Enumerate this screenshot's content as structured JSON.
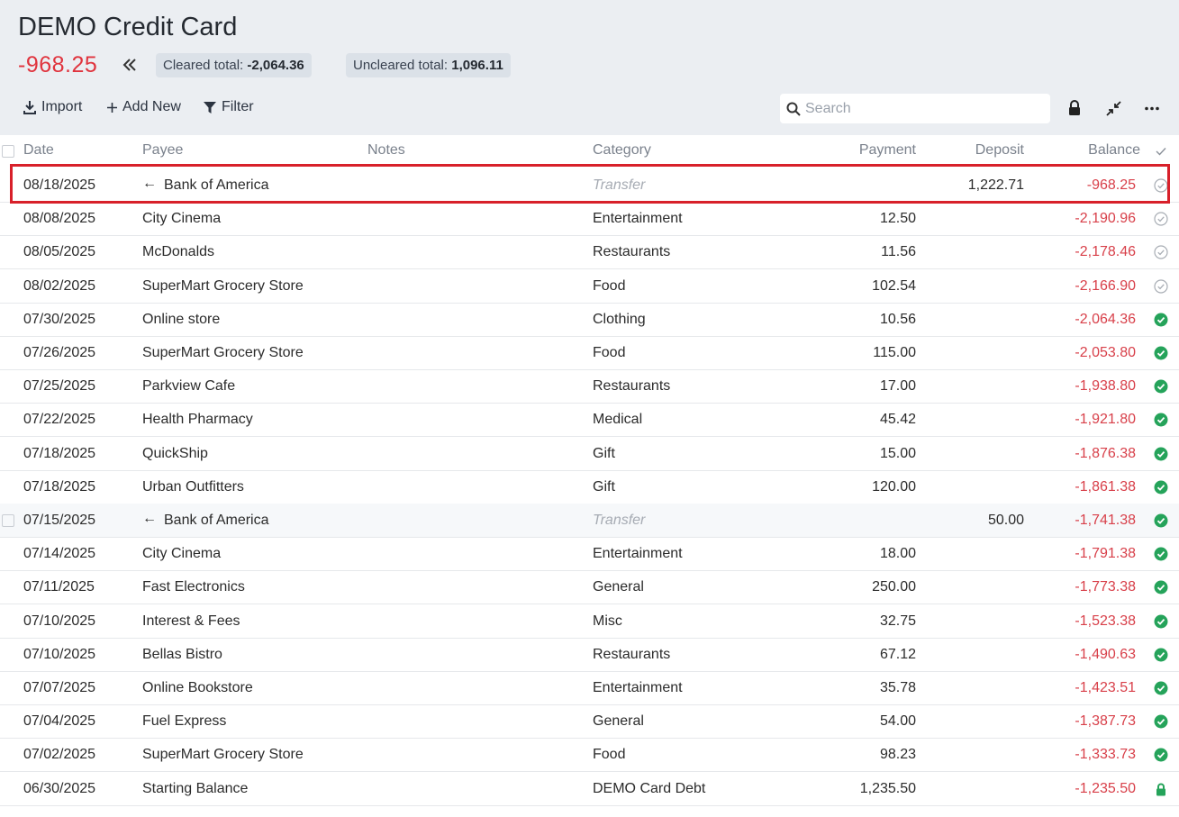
{
  "header": {
    "title": "DEMO Credit Card",
    "balance": "-968.25",
    "cleared_label": "Cleared total:",
    "cleared_value": "-2,064.36",
    "uncleared_label": "Uncleared total:",
    "uncleared_value": "1,096.11"
  },
  "toolbar": {
    "import": "Import",
    "add_new": "Add New",
    "filter": "Filter",
    "search_placeholder": "Search"
  },
  "table": {
    "columns": {
      "date": "Date",
      "payee": "Payee",
      "notes": "Notes",
      "category": "Category",
      "payment": "Payment",
      "deposit": "Deposit",
      "balance": "Balance"
    },
    "rows": [
      {
        "date": "08/18/2025",
        "payee": "Bank of America",
        "transfer": true,
        "category": "Transfer",
        "payment": null,
        "deposit": "1,222.71",
        "balance": "-968.25",
        "status": "uncleared"
      },
      {
        "date": "08/08/2025",
        "payee": "City Cinema",
        "category": "Entertainment",
        "payment": "12.50",
        "deposit": null,
        "balance": "-2,190.96",
        "status": "uncleared"
      },
      {
        "date": "08/05/2025",
        "payee": "McDonalds",
        "category": "Restaurants",
        "payment": "11.56",
        "deposit": null,
        "balance": "-2,178.46",
        "status": "uncleared"
      },
      {
        "date": "08/02/2025",
        "payee": "SuperMart Grocery Store",
        "category": "Food",
        "payment": "102.54",
        "deposit": null,
        "balance": "-2,166.90",
        "status": "uncleared"
      },
      {
        "date": "07/30/2025",
        "payee": "Online store",
        "category": "Clothing",
        "payment": "10.56",
        "deposit": null,
        "balance": "-2,064.36",
        "status": "cleared"
      },
      {
        "date": "07/26/2025",
        "payee": "SuperMart Grocery Store",
        "category": "Food",
        "payment": "115.00",
        "deposit": null,
        "balance": "-2,053.80",
        "status": "cleared"
      },
      {
        "date": "07/25/2025",
        "payee": "Parkview Cafe",
        "category": "Restaurants",
        "payment": "17.00",
        "deposit": null,
        "balance": "-1,938.80",
        "status": "cleared"
      },
      {
        "date": "07/22/2025",
        "payee": "Health Pharmacy",
        "category": "Medical",
        "payment": "45.42",
        "deposit": null,
        "balance": "-1,921.80",
        "status": "cleared"
      },
      {
        "date": "07/18/2025",
        "payee": "QuickShip",
        "category": "Gift",
        "payment": "15.00",
        "deposit": null,
        "balance": "-1,876.38",
        "status": "cleared"
      },
      {
        "date": "07/18/2025",
        "payee": "Urban Outfitters",
        "category": "Gift",
        "payment": "120.00",
        "deposit": null,
        "balance": "-1,861.38",
        "status": "cleared"
      },
      {
        "date": "07/15/2025",
        "payee": "Bank of America",
        "transfer": true,
        "category": "Transfer",
        "payment": null,
        "deposit": "50.00",
        "balance": "-1,741.38",
        "status": "cleared"
      },
      {
        "date": "07/14/2025",
        "payee": "City Cinema",
        "category": "Entertainment",
        "payment": "18.00",
        "deposit": null,
        "balance": "-1,791.38",
        "status": "cleared"
      },
      {
        "date": "07/11/2025",
        "payee": "Fast Electronics",
        "category": "General",
        "payment": "250.00",
        "deposit": null,
        "balance": "-1,773.38",
        "status": "cleared"
      },
      {
        "date": "07/10/2025",
        "payee": "Interest & Fees",
        "category": "Misc",
        "payment": "32.75",
        "deposit": null,
        "balance": "-1,523.38",
        "status": "cleared"
      },
      {
        "date": "07/10/2025",
        "payee": "Bellas Bistro",
        "category": "Restaurants",
        "payment": "67.12",
        "deposit": null,
        "balance": "-1,490.63",
        "status": "cleared"
      },
      {
        "date": "07/07/2025",
        "payee": "Online Bookstore",
        "category": "Entertainment",
        "payment": "35.78",
        "deposit": null,
        "balance": "-1,423.51",
        "status": "cleared"
      },
      {
        "date": "07/04/2025",
        "payee": "Fuel Express",
        "category": "General",
        "payment": "54.00",
        "deposit": null,
        "balance": "-1,387.73",
        "status": "cleared"
      },
      {
        "date": "07/02/2025",
        "payee": "SuperMart Grocery Store",
        "category": "Food",
        "payment": "98.23",
        "deposit": null,
        "balance": "-1,333.73",
        "status": "cleared"
      },
      {
        "date": "06/30/2025",
        "payee": "Starting Balance",
        "category": "DEMO Card Debt",
        "payment": "1,235.50",
        "deposit": null,
        "balance": "-1,235.50",
        "status": "locked"
      }
    ]
  }
}
